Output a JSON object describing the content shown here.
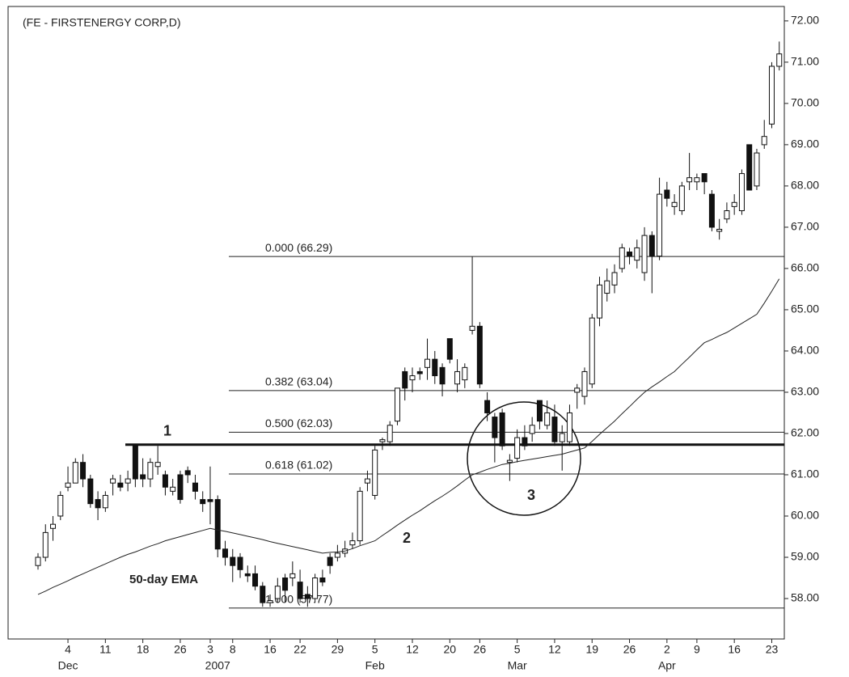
{
  "chart_data": {
    "type": "candlestick",
    "title": "(FE - FIRSTENERGY CORP,D)",
    "categories": [
      null,
      null,
      null,
      null,
      "4",
      null,
      null,
      null,
      null,
      "11",
      null,
      null,
      null,
      null,
      "18",
      null,
      null,
      null,
      null,
      "26",
      null,
      null,
      null,
      "3",
      null,
      null,
      "8",
      null,
      null,
      null,
      null,
      "16",
      null,
      null,
      null,
      "22",
      null,
      null,
      null,
      null,
      "29",
      null,
      null,
      null,
      null,
      "5",
      null,
      null,
      null,
      null,
      "12",
      null,
      null,
      null,
      null,
      "20",
      null,
      null,
      null,
      "26",
      null,
      null,
      null,
      null,
      "5",
      null,
      null,
      null,
      null,
      "12",
      null,
      null,
      null,
      null,
      "19",
      null,
      null,
      null,
      null,
      "26",
      null,
      null,
      null,
      null,
      "2",
      null,
      null,
      null,
      "9",
      null,
      null,
      null,
      null,
      "16",
      null,
      null,
      null,
      null,
      "23",
      null
    ],
    "months": [
      null,
      null,
      null,
      null,
      "Dec",
      null,
      null,
      null,
      null,
      null,
      null,
      null,
      null,
      null,
      null,
      null,
      null,
      null,
      null,
      null,
      null,
      null,
      null,
      null,
      "2007",
      null,
      null,
      null,
      null,
      null,
      null,
      null,
      null,
      null,
      null,
      null,
      null,
      null,
      null,
      null,
      null,
      null,
      null,
      null,
      null,
      "Feb",
      null,
      null,
      null,
      null,
      null,
      null,
      null,
      null,
      null,
      null,
      null,
      null,
      null,
      null,
      null,
      null,
      null,
      null,
      "Mar",
      null,
      null,
      null,
      null,
      null,
      null,
      null,
      null,
      null,
      null,
      null,
      null,
      null,
      null,
      null,
      null,
      null,
      null,
      null,
      "Apr",
      null,
      null,
      null,
      null,
      null,
      null,
      null,
      null,
      null,
      null,
      null,
      null,
      null,
      null,
      null
    ],
    "open": [
      58.8,
      59.0,
      59.7,
      60.0,
      60.7,
      60.8,
      61.3,
      60.9,
      60.4,
      60.2,
      60.8,
      60.8,
      60.8,
      61.7,
      61.0,
      60.9,
      61.2,
      61.0,
      60.6,
      61.0,
      61.1,
      60.8,
      60.4,
      60.4,
      60.4,
      59.2,
      59.0,
      59.0,
      58.6,
      58.6,
      58.3,
      57.9,
      58.0,
      58.5,
      58.5,
      58.4,
      58.1,
      58.0,
      58.5,
      59.0,
      59.0,
      59.1,
      59.3,
      59.4,
      60.8,
      60.5,
      61.8,
      61.8,
      62.3,
      63.5,
      63.3,
      63.5,
      63.6,
      63.8,
      63.6,
      64.3,
      63.2,
      63.3,
      64.5,
      64.6,
      62.8,
      62.4,
      62.5,
      61.3,
      61.4,
      61.9,
      62.0,
      62.8,
      62.2,
      62.4,
      61.8,
      61.8,
      63.0,
      62.9,
      63.2,
      64.8,
      65.4,
      65.6,
      66.0,
      66.4,
      66.2,
      65.9,
      66.8,
      66.3,
      67.9,
      67.5,
      67.4,
      68.1,
      68.1,
      68.3,
      67.8,
      66.9,
      67.2,
      67.5,
      67.4,
      69.0,
      68.0,
      69.0,
      69.5,
      70.9
    ],
    "high": [
      59.1,
      59.8,
      60.0,
      60.6,
      61.2,
      61.4,
      61.5,
      61.0,
      60.6,
      60.6,
      61.0,
      61.0,
      61.1,
      61.75,
      61.4,
      61.4,
      61.7,
      61.1,
      60.9,
      61.1,
      61.2,
      61.0,
      60.6,
      61.2,
      60.5,
      59.4,
      59.2,
      59.1,
      58.8,
      58.8,
      58.4,
      58.1,
      58.5,
      58.6,
      58.9,
      58.7,
      58.3,
      58.6,
      58.7,
      59.1,
      59.3,
      59.4,
      59.6,
      60.7,
      61.1,
      61.7,
      61.9,
      62.3,
      63.1,
      63.6,
      63.6,
      63.6,
      64.3,
      64.0,
      63.7,
      64.3,
      63.8,
      63.7,
      66.29,
      64.7,
      63.0,
      62.5,
      62.6,
      61.5,
      62.1,
      62.2,
      62.4,
      62.8,
      62.8,
      62.7,
      62.2,
      62.7,
      63.2,
      63.6,
      64.9,
      65.8,
      66.0,
      66.1,
      66.6,
      66.5,
      66.7,
      67.0,
      66.9,
      68.2,
      68.1,
      67.8,
      68.1,
      68.8,
      68.3,
      68.3,
      67.9,
      67.2,
      67.6,
      67.8,
      68.4,
      69.0,
      68.9,
      69.6,
      71.0,
      71.5
    ],
    "low": [
      58.7,
      58.9,
      59.4,
      59.9,
      60.6,
      60.8,
      60.7,
      60.2,
      59.9,
      60.1,
      60.5,
      60.6,
      60.6,
      60.7,
      60.7,
      60.7,
      61.0,
      60.5,
      60.5,
      60.3,
      60.8,
      60.4,
      60.1,
      59.8,
      59.0,
      58.8,
      58.4,
      58.5,
      58.4,
      58.2,
      57.8,
      57.8,
      57.9,
      57.9,
      58.3,
      57.9,
      57.8,
      57.9,
      58.3,
      58.6,
      58.9,
      59.0,
      59.2,
      59.3,
      60.6,
      60.4,
      61.6,
      61.7,
      62.2,
      62.8,
      63.0,
      63.3,
      63.3,
      63.2,
      62.9,
      63.7,
      63.0,
      63.1,
      64.4,
      63.1,
      62.3,
      61.3,
      61.6,
      60.85,
      61.3,
      61.6,
      61.8,
      62.1,
      62.1,
      61.7,
      61.1,
      61.7,
      62.6,
      62.7,
      63.1,
      64.6,
      65.2,
      65.4,
      65.9,
      66.1,
      66.0,
      65.7,
      65.4,
      66.2,
      67.5,
      67.3,
      67.3,
      67.9,
      67.9,
      67.8,
      66.9,
      66.7,
      67.1,
      67.3,
      67.3,
      67.9,
      67.9,
      68.9,
      69.4,
      70.8
    ],
    "close": [
      59.0,
      59.6,
      59.8,
      60.5,
      60.8,
      61.3,
      60.9,
      60.3,
      60.2,
      60.5,
      60.9,
      60.7,
      60.9,
      60.9,
      60.9,
      61.3,
      61.3,
      60.7,
      60.7,
      60.4,
      61.0,
      60.6,
      60.3,
      60.35,
      59.2,
      59.0,
      58.8,
      58.7,
      58.55,
      58.3,
      57.9,
      57.95,
      58.3,
      58.2,
      58.6,
      58.0,
      58.0,
      58.5,
      58.4,
      58.8,
      59.1,
      59.2,
      59.4,
      60.6,
      60.9,
      61.6,
      61.85,
      62.2,
      63.1,
      63.1,
      63.4,
      63.45,
      63.8,
      63.4,
      63.2,
      63.8,
      63.5,
      63.6,
      64.6,
      63.2,
      62.5,
      61.9,
      61.7,
      61.35,
      61.9,
      61.7,
      62.2,
      62.3,
      62.5,
      61.8,
      62.0,
      62.5,
      63.1,
      63.5,
      64.8,
      65.6,
      65.7,
      65.9,
      66.5,
      66.3,
      66.5,
      66.8,
      66.3,
      67.8,
      67.7,
      67.6,
      68.0,
      68.2,
      68.2,
      68.1,
      67.0,
      66.95,
      67.4,
      67.6,
      68.3,
      67.9,
      68.8,
      69.2,
      70.9,
      71.2
    ],
    "up_color": "#ffffff",
    "down_color": "#111111",
    "ema": {
      "name": "50-day EMA",
      "color": "#222222",
      "values": [
        58.1,
        58.18,
        58.27,
        58.35,
        58.43,
        58.52,
        58.6,
        58.68,
        58.76,
        58.84,
        58.92,
        59.0,
        59.07,
        59.13,
        59.2,
        59.27,
        59.33,
        59.4,
        59.45,
        59.5,
        59.55,
        59.6,
        59.65,
        59.7,
        59.66,
        59.63,
        59.59,
        59.55,
        59.51,
        59.47,
        59.43,
        59.38,
        59.34,
        59.3,
        59.26,
        59.22,
        59.18,
        59.14,
        59.1,
        59.12,
        59.13,
        59.15,
        59.21,
        59.28,
        59.34,
        59.4,
        59.53,
        59.65,
        59.78,
        59.9,
        60.02,
        60.13,
        60.25,
        60.37,
        60.48,
        60.6,
        60.73,
        60.87,
        61.0,
        61.06,
        61.13,
        61.19,
        61.25,
        61.28,
        61.32,
        61.35,
        61.38,
        61.41,
        61.44,
        61.47,
        61.5,
        61.55,
        61.6,
        61.65,
        61.81,
        61.98,
        62.14,
        62.3,
        62.48,
        62.65,
        62.83,
        63.0,
        63.13,
        63.25,
        63.38,
        63.5,
        63.68,
        63.85,
        64.03,
        64.2,
        64.28,
        64.37,
        64.45,
        64.56,
        64.67,
        64.78,
        64.89,
        65.16,
        65.45,
        65.75
      ]
    },
    "fib_levels": [
      {
        "value": 66.29,
        "label": "0.000 (66.29)"
      },
      {
        "value": 63.04,
        "label": "0.382 (63.04)"
      },
      {
        "value": 62.03,
        "label": "0.500 (62.03)"
      },
      {
        "value": 61.02,
        "label": "0.618 (61.02)"
      },
      {
        "value": 57.77,
        "label": "1.000 (57.77)"
      }
    ],
    "resistance": {
      "value": 61.73,
      "label": "1"
    },
    "annotations": [
      "2",
      "3"
    ],
    "ylim": [
      57.02,
      72.35
    ],
    "yticks": [
      {
        "value": 58,
        "label": "58.00"
      },
      {
        "value": 59,
        "label": "59.00"
      },
      {
        "value": 60,
        "label": "60.00"
      },
      {
        "value": 61,
        "label": "61.00"
      },
      {
        "value": 62,
        "label": "62.00"
      },
      {
        "value": 63,
        "label": "63.00"
      },
      {
        "value": 64,
        "label": "64.00"
      },
      {
        "value": 65,
        "label": "65.00"
      },
      {
        "value": 66,
        "label": "66.00"
      },
      {
        "value": 67,
        "label": "67.00"
      },
      {
        "value": 68,
        "label": "68.00"
      },
      {
        "value": 69,
        "label": "69.00"
      },
      {
        "value": 70,
        "label": "70.00"
      },
      {
        "value": 71,
        "label": "71.00"
      },
      {
        "value": 72,
        "label": "72.00"
      }
    ]
  }
}
